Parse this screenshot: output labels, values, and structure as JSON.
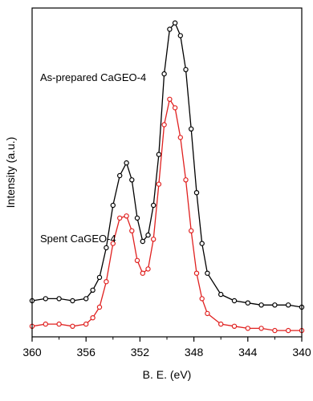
{
  "chart_data": {
    "type": "line",
    "xlabel": "B. E. (eV)",
    "ylabel": "Intensity (a.u.)",
    "xlim": [
      360,
      340
    ],
    "x_reversed": true,
    "y_ticks_shown": false,
    "x_ticks": [
      360,
      356,
      352,
      348,
      344,
      340
    ],
    "x_tick_labels": [
      "360",
      "356",
      "352",
      "348",
      "344",
      "340"
    ],
    "grid": false,
    "legend": "none",
    "series": [
      {
        "name": "As-prepared CaGEO-4",
        "color": "#000000",
        "marker": "circle",
        "x": [
          360.0,
          359.0,
          358.0,
          357.0,
          356.0,
          355.5,
          355.0,
          354.5,
          354.0,
          353.5,
          353.0,
          352.6,
          352.2,
          351.8,
          351.4,
          351.0,
          350.6,
          350.2,
          349.8,
          349.4,
          349.0,
          348.6,
          348.2,
          347.8,
          347.4,
          347.0,
          346.0,
          345.0,
          344.0,
          343.0,
          342.0,
          341.0,
          340.0
        ],
        "y": [
          0.17,
          0.18,
          0.18,
          0.17,
          0.18,
          0.22,
          0.28,
          0.42,
          0.62,
          0.76,
          0.82,
          0.74,
          0.56,
          0.45,
          0.48,
          0.62,
          0.86,
          1.24,
          1.45,
          1.48,
          1.42,
          1.26,
          0.98,
          0.68,
          0.44,
          0.3,
          0.2,
          0.17,
          0.16,
          0.15,
          0.15,
          0.15,
          0.14
        ]
      },
      {
        "name": "Spent CaGEO-4",
        "color": "#e0201f",
        "marker": "circle",
        "x": [
          360.0,
          359.0,
          358.0,
          357.0,
          356.0,
          355.5,
          355.0,
          354.5,
          354.0,
          353.5,
          353.0,
          352.6,
          352.2,
          351.8,
          351.4,
          351.0,
          350.6,
          350.2,
          349.8,
          349.4,
          349.0,
          348.6,
          348.2,
          347.8,
          347.4,
          347.0,
          346.0,
          345.0,
          344.0,
          343.0,
          342.0,
          341.0,
          340.0
        ],
        "y": [
          0.05,
          0.06,
          0.06,
          0.05,
          0.06,
          0.09,
          0.14,
          0.26,
          0.44,
          0.56,
          0.57,
          0.5,
          0.36,
          0.3,
          0.32,
          0.46,
          0.72,
          1.0,
          1.12,
          1.08,
          0.94,
          0.74,
          0.5,
          0.3,
          0.18,
          0.11,
          0.06,
          0.05,
          0.04,
          0.04,
          0.03,
          0.03,
          0.03
        ]
      }
    ]
  }
}
